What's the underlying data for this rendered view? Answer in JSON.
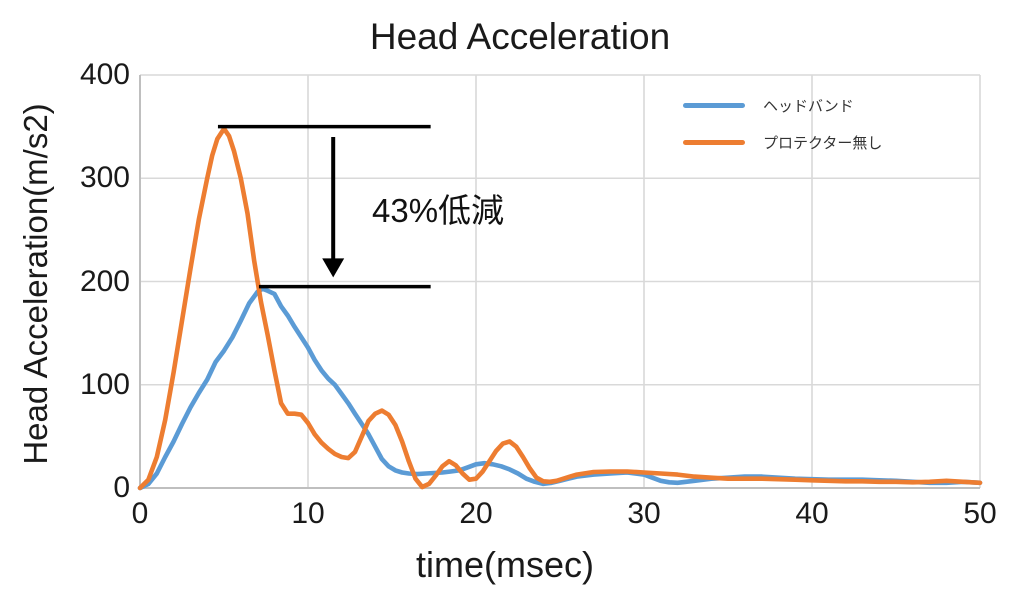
{
  "colors": {
    "headband": "#5B9BD5",
    "no_protector": "#ED7D31",
    "gridline": "#D9D9D9",
    "axis": "#BFBFBF",
    "annotation_line": "#000000"
  },
  "chart_data": {
    "type": "line",
    "title": "Head Acceleration",
    "xlabel": "time(msec)",
    "ylabel": "Head Acceleration(m/s2)",
    "xlim": [
      0,
      50
    ],
    "ylim": [
      0,
      400
    ],
    "xticks": [
      0,
      10,
      20,
      30,
      40,
      50
    ],
    "yticks": [
      0,
      100,
      200,
      300,
      400
    ],
    "grid": true,
    "legend_position": "top-right",
    "series": [
      {
        "name": "ヘッドバンド",
        "color": "#5B9BD5",
        "peak_value": 195,
        "x": [
          0,
          0.5,
          1,
          1.5,
          2,
          2.5,
          3,
          3.5,
          4,
          4.5,
          5,
          5.5,
          6,
          6.5,
          7,
          7.3,
          7.6,
          8,
          8.4,
          8.8,
          9.2,
          9.6,
          10,
          10.4,
          10.8,
          11.2,
          11.6,
          12,
          12.4,
          12.8,
          13.2,
          13.6,
          14,
          14.4,
          14.8,
          15.2,
          15.6,
          16,
          16.5,
          17,
          17.5,
          18,
          18.5,
          19,
          19.5,
          20,
          20.5,
          21,
          21.5,
          22,
          22.5,
          23,
          23.5,
          24,
          24.5,
          25,
          25.5,
          26,
          27,
          28,
          29,
          30,
          30.5,
          31,
          31.5,
          32,
          32.5,
          33,
          34,
          35,
          36,
          37,
          38,
          39,
          40,
          41,
          42,
          43,
          44,
          45,
          46,
          47,
          48,
          49,
          50
        ],
        "y": [
          0,
          4,
          14,
          30,
          45,
          62,
          78,
          92,
          105,
          122,
          133,
          146,
          162,
          179,
          190,
          193,
          191,
          188,
          176,
          167,
          156,
          146,
          136,
          124,
          114,
          106,
          100,
          91,
          82,
          72,
          62,
          52,
          40,
          28,
          21,
          17,
          15,
          14,
          13.5,
          14,
          14.5,
          15,
          16,
          17,
          20,
          23,
          24,
          23,
          21,
          18,
          14,
          9,
          6,
          4,
          5,
          7,
          9,
          11,
          13,
          14,
          15,
          13,
          10,
          7,
          5.5,
          5,
          6,
          7,
          9,
          10,
          11,
          11,
          10,
          9,
          8.5,
          8,
          8,
          8,
          7.5,
          7,
          6,
          5,
          5,
          6,
          5
        ]
      },
      {
        "name": "プロテクター無し",
        "color": "#ED7D31",
        "peak_value": 350,
        "x": [
          0,
          0.5,
          1,
          1.5,
          2,
          2.5,
          3,
          3.5,
          4,
          4.3,
          4.6,
          5,
          5.3,
          5.6,
          6,
          6.4,
          6.8,
          7.2,
          7.6,
          8,
          8.4,
          8.8,
          9.2,
          9.6,
          10,
          10.4,
          10.8,
          11.2,
          11.6,
          12,
          12.4,
          12.8,
          13.2,
          13.6,
          14,
          14.4,
          14.8,
          15.2,
          15.6,
          16,
          16.4,
          16.8,
          17.2,
          17.6,
          18,
          18.4,
          18.8,
          19.2,
          19.6,
          20,
          20.4,
          20.8,
          21.2,
          21.6,
          22,
          22.4,
          22.8,
          23.2,
          23.6,
          24,
          24.4,
          24.8,
          25.2,
          25.6,
          26,
          27,
          28,
          29,
          30,
          31,
          32,
          33,
          34,
          35,
          36,
          37,
          38,
          39,
          40,
          41,
          42,
          43,
          44,
          45,
          46,
          47,
          48,
          49,
          50
        ],
        "y": [
          0,
          8,
          30,
          66,
          112,
          162,
          212,
          260,
          300,
          322,
          338,
          348,
          341,
          326,
          300,
          266,
          220,
          180,
          148,
          114,
          82,
          72,
          72,
          71,
          63,
          52,
          44,
          38,
          33,
          30,
          29,
          35,
          50,
          65,
          72,
          75,
          71,
          61,
          45,
          26,
          9,
          1,
          4,
          12,
          21,
          26,
          22,
          14,
          8,
          9,
          16,
          26,
          36,
          43,
          45,
          40,
          30,
          19,
          10,
          6.5,
          6,
          7,
          9,
          11,
          13,
          15.5,
          16,
          16,
          15,
          14,
          13,
          11,
          10,
          9,
          9,
          9,
          8.5,
          8,
          7.5,
          7,
          6.5,
          6.5,
          6,
          6,
          5.5,
          6,
          7,
          6,
          5
        ]
      }
    ],
    "annotations": [
      {
        "type": "hline",
        "y": 350,
        "x_start": 4.64,
        "x_end": 17.3
      },
      {
        "type": "hline",
        "y": 195,
        "x_start": 7.08,
        "x_end": 17.3
      },
      {
        "type": "arrow",
        "x": 11.5,
        "y_start": 340,
        "y_end": 204
      },
      {
        "type": "text",
        "label": "43%低減",
        "x": 13.8,
        "y": 270
      }
    ]
  }
}
